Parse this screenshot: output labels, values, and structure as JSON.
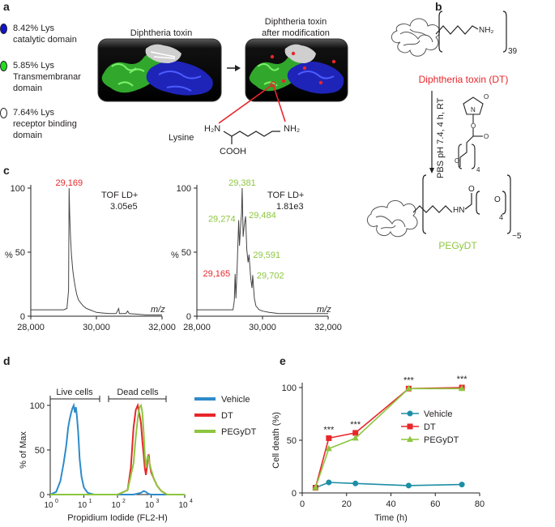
{
  "panels": {
    "a": "a",
    "b": "b",
    "c": "c",
    "d": "d",
    "e": "e"
  },
  "panel_a": {
    "legend": [
      {
        "lines": [
          "8.42% Lys",
          "catalytic domain"
        ],
        "color": "#1414c8"
      },
      {
        "lines": [
          "5.85% Lys",
          "Transmembranar",
          "domain"
        ],
        "color": "#22dd22"
      },
      {
        "lines": [
          "7.64% Lys",
          "receptor binding",
          "domain"
        ],
        "color": "#ffffff"
      }
    ],
    "struct_left_title": "Diphtheria toxin",
    "struct_right_title": [
      "Diphtheria toxin",
      "after modification"
    ],
    "lysine_label": "Lysine",
    "lysine_atoms": {
      "h2n": "H₂N",
      "nh2": "NH₂",
      "cooh": "COOH"
    }
  },
  "panel_b": {
    "nh2_label": "NH₂",
    "repeat_top": "39",
    "dt_label": "Diphtheria toxin (DT)",
    "dt_color": "#e8262a",
    "conditions": "PBS pH 7.4, 4 h, RT",
    "reagent_sub": "4",
    "reagent_atoms": {
      "o": "O",
      "n": "N"
    },
    "product_hn": "HN",
    "product_o": "O",
    "product_sub": "4",
    "product_repeat": "~5",
    "pegydt_label": "PEGyDT",
    "pegydt_color": "#8dc63f"
  },
  "panel_c": {
    "y_axis_label": "%",
    "x_axis_label": "m/z",
    "left": {
      "instrument": "TOF LD+",
      "intensity": "3.05e5",
      "peak_labels": [
        {
          "text": "29,169",
          "mz": 29169,
          "y": 100,
          "color": "#e8262a"
        }
      ],
      "y_ticks": [
        "0",
        "50",
        "100"
      ],
      "x_ticks": [
        "28,000",
        "30,000",
        "32,000"
      ],
      "xlim": [
        28000,
        32000
      ],
      "spectrum_mz": [
        28000,
        29000,
        29100,
        29150,
        29169,
        29185,
        29210,
        29240,
        29280,
        29320,
        29360,
        29400,
        29450,
        29500,
        29600,
        29700,
        29800,
        29900,
        30000,
        30200,
        30400,
        30600,
        30680,
        30700,
        30900,
        30950,
        31000,
        31500,
        32000
      ],
      "spectrum_pct": [
        5,
        5,
        6,
        20,
        100,
        80,
        62,
        48,
        36,
        28,
        22,
        17,
        13,
        11,
        8,
        6,
        5,
        4,
        3,
        2.5,
        2,
        2,
        6,
        2,
        2,
        4,
        2,
        1,
        1
      ]
    },
    "right": {
      "instrument": "TOF LD+",
      "intensity": "1.81e3",
      "peak_labels": [
        {
          "text": "29,381",
          "mz": 29381,
          "y": 100,
          "color": "#8dc63f"
        },
        {
          "text": "29,274",
          "mz": 29274,
          "y": 75,
          "color": "#8dc63f"
        },
        {
          "text": "29,484",
          "mz": 29484,
          "y": 78,
          "color": "#8dc63f"
        },
        {
          "text": "29,591",
          "mz": 29591,
          "y": 48,
          "color": "#8dc63f"
        },
        {
          "text": "29,165",
          "mz": 29165,
          "y": 33,
          "color": "#e8262a"
        },
        {
          "text": "29,702",
          "mz": 29702,
          "y": 32,
          "color": "#8dc63f"
        }
      ],
      "y_ticks": [
        "0",
        "50",
        "100"
      ],
      "x_ticks": [
        "28,000",
        "30,000",
        "32,000"
      ],
      "xlim": [
        28000,
        32000
      ],
      "spectrum_mz": [
        28000,
        29000,
        29100,
        29140,
        29165,
        29190,
        29230,
        29274,
        29300,
        29330,
        29360,
        29381,
        29410,
        29440,
        29484,
        29520,
        29560,
        29591,
        29640,
        29680,
        29702,
        29750,
        29800,
        29900,
        30000,
        30200,
        30500,
        31000,
        32000
      ],
      "spectrum_pct": [
        5,
        5,
        5,
        12,
        33,
        14,
        40,
        75,
        55,
        70,
        80,
        100,
        62,
        70,
        78,
        52,
        42,
        48,
        30,
        22,
        32,
        14,
        8,
        5,
        4,
        3,
        2,
        2,
        2
      ]
    }
  },
  "panel_d": {
    "y_axis_label": "% of Max",
    "x_axis_label": "Propidium Iodide (FL2-H)",
    "y_ticks": [
      "0",
      "50",
      "100"
    ],
    "x_ticks": [
      {
        "base": "10",
        "exp": "0"
      },
      {
        "base": "10",
        "exp": "1"
      },
      {
        "base": "10",
        "exp": "2"
      },
      {
        "base": "10",
        "exp": "3"
      },
      {
        "base": "10",
        "exp": "4"
      }
    ],
    "gate_live": "Live cells",
    "gate_dead": "Dead cells",
    "legend": [
      {
        "name": "Vehicle",
        "color": "#2e8bc9"
      },
      {
        "name": "DT",
        "color": "#e8262a"
      },
      {
        "name": "PEGyDT",
        "color": "#8dc63f"
      }
    ]
  },
  "panel_e": {
    "y_axis_label": "Cell death (%)",
    "x_axis_label": "Time (h)",
    "y_ticks": [
      "0",
      "50",
      "100"
    ],
    "x_ticks": [
      "0",
      "20",
      "40",
      "60",
      "80"
    ],
    "significance": "***"
  },
  "chart_data": [
    {
      "type": "line",
      "panel": "c-left",
      "xlabel": "m/z",
      "ylabel": "%",
      "xlim": [
        28000,
        32000
      ],
      "ylim": [
        0,
        100
      ],
      "annotations": [
        "29,169",
        "TOF LD+",
        "3.05e5"
      ]
    },
    {
      "type": "line",
      "panel": "c-right",
      "xlabel": "m/z",
      "ylabel": "%",
      "xlim": [
        28000,
        32000
      ],
      "ylim": [
        0,
        100
      ],
      "annotations": [
        "29,381",
        "29,274",
        "29,484",
        "29,591",
        "29,165",
        "29,702",
        "TOF LD+",
        "1.81e3"
      ]
    },
    {
      "type": "line",
      "panel": "d",
      "xlabel": "Propidium Iodide (FL2-H)",
      "ylabel": "% of Max",
      "x_scale": "log",
      "xlim": [
        1,
        10000
      ],
      "ylim": [
        0,
        100
      ],
      "legend_position": "right",
      "series": [
        {
          "name": "Vehicle",
          "color": "#2e8bc9",
          "x": [
            1,
            1.5,
            2,
            2.5,
            3,
            3.4,
            3.8,
            4.2,
            4.6,
            5,
            5.4,
            5.8,
            6.2,
            6.8,
            7.5,
            8.5,
            10,
            13,
            20,
            100,
            300,
            500,
            600,
            700,
            800,
            1000,
            10000
          ],
          "y": [
            0,
            3,
            15,
            35,
            55,
            75,
            85,
            92,
            97,
            100,
            92,
            98,
            88,
            70,
            40,
            20,
            8,
            2,
            0,
            0,
            0,
            2,
            4,
            3,
            1,
            0,
            0
          ]
        },
        {
          "name": "DT",
          "color": "#e8262a",
          "x": [
            1,
            100,
            200,
            250,
            300,
            350,
            400,
            450,
            500,
            550,
            600,
            650,
            700,
            750,
            800,
            850,
            900,
            1000,
            1200,
            1500,
            2000,
            3000,
            10000
          ],
          "y": [
            0,
            0,
            5,
            30,
            75,
            95,
            100,
            90,
            80,
            60,
            45,
            30,
            22,
            30,
            42,
            45,
            35,
            25,
            18,
            10,
            4,
            0,
            0
          ]
        },
        {
          "name": "PEGyDT",
          "color": "#8dc63f",
          "x": [
            1,
            100,
            200,
            300,
            350,
            400,
            450,
            500,
            550,
            600,
            650,
            700,
            750,
            800,
            850,
            900,
            1000,
            1200,
            1500,
            2000,
            3000,
            10000
          ],
          "y": [
            0,
            0,
            5,
            35,
            65,
            85,
            98,
            100,
            92,
            70,
            45,
            30,
            38,
            44,
            40,
            35,
            28,
            18,
            10,
            4,
            0,
            0
          ]
        }
      ]
    },
    {
      "type": "line",
      "panel": "e",
      "xlabel": "Time (h)",
      "ylabel": "Cell death (%)",
      "xlim": [
        0,
        80
      ],
      "ylim": [
        0,
        100
      ],
      "legend_position": "center-right",
      "significance_x": [
        12,
        24,
        48,
        72
      ],
      "series": [
        {
          "name": "Vehicle",
          "color": "#1c8ea5",
          "marker": "circle",
          "x": [
            6,
            12,
            24,
            48,
            72
          ],
          "y": [
            5,
            10,
            9,
            7,
            8
          ]
        },
        {
          "name": "DT",
          "color": "#e8262a",
          "marker": "square",
          "x": [
            6,
            12,
            24,
            48,
            72
          ],
          "y": [
            5,
            52,
            57,
            99,
            100
          ]
        },
        {
          "name": "PEGyDT",
          "color": "#8dc63f",
          "marker": "triangle",
          "x": [
            6,
            12,
            24,
            48,
            72
          ],
          "y": [
            5,
            42,
            52,
            99,
            99
          ]
        }
      ]
    }
  ]
}
